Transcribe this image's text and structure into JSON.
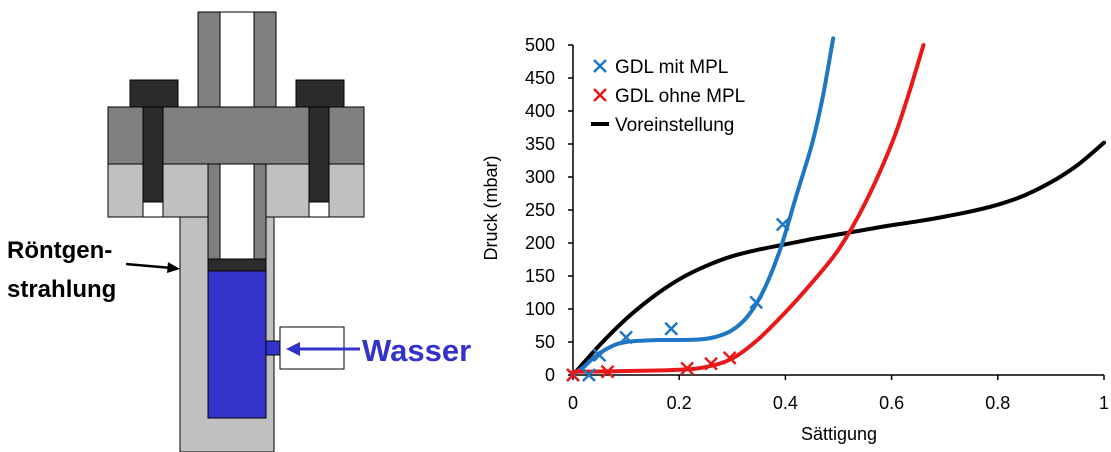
{
  "diagram": {
    "label_xray_line1": "Röntgen-",
    "label_xray_line2": "strahlung",
    "label_water": "Wasser",
    "colors": {
      "dark": "#2b2b2b",
      "mid": "#7f7f7f",
      "light": "#c0c0c0",
      "water": "#3333cc",
      "water_label": "#3333cc"
    }
  },
  "chart_data": {
    "type": "scatter",
    "title": "",
    "xlabel": "Sättigung",
    "ylabel": "Druck (mbar)",
    "xlim": [
      0,
      1
    ],
    "ylim": [
      0,
      500
    ],
    "xticks": [
      0,
      0.2,
      0.4,
      0.6,
      0.8,
      1
    ],
    "xtick_labels": [
      "0",
      "0.2",
      "0.4",
      "0.6",
      "0.8",
      "1"
    ],
    "yticks": [
      0,
      50,
      100,
      150,
      200,
      250,
      300,
      350,
      400,
      450,
      500
    ],
    "ytick_labels": [
      "0",
      "50",
      "100",
      "150",
      "200",
      "250",
      "300",
      "350",
      "400",
      "450",
      "500"
    ],
    "grid": false,
    "legend_position": "top-left",
    "series": [
      {
        "name": "GDL mit MPL",
        "color": "#1f77c4",
        "marker": "x",
        "points": [
          [
            0.0,
            0
          ],
          [
            0.03,
            0
          ],
          [
            0.05,
            30
          ],
          [
            0.1,
            57
          ],
          [
            0.185,
            70
          ],
          [
            0.345,
            110
          ],
          [
            0.395,
            228
          ]
        ],
        "curve": [
          [
            0.0,
            0
          ],
          [
            0.02,
            12
          ],
          [
            0.04,
            27
          ],
          [
            0.06,
            38
          ],
          [
            0.08,
            46
          ],
          [
            0.1,
            50
          ],
          [
            0.13,
            52
          ],
          [
            0.16,
            53
          ],
          [
            0.2,
            53
          ],
          [
            0.24,
            54
          ],
          [
            0.27,
            58
          ],
          [
            0.3,
            68
          ],
          [
            0.33,
            90
          ],
          [
            0.36,
            130
          ],
          [
            0.39,
            190
          ],
          [
            0.42,
            270
          ],
          [
            0.45,
            350
          ],
          [
            0.47,
            420
          ],
          [
            0.49,
            510
          ]
        ]
      },
      {
        "name": "GDL ohne MPL",
        "color": "#e8191b",
        "marker": "x",
        "points": [
          [
            0.0,
            0
          ],
          [
            0.065,
            5
          ],
          [
            0.215,
            10
          ],
          [
            0.26,
            17
          ],
          [
            0.295,
            26
          ]
        ],
        "curve": [
          [
            0.0,
            5
          ],
          [
            0.1,
            6
          ],
          [
            0.2,
            8
          ],
          [
            0.25,
            12
          ],
          [
            0.3,
            25
          ],
          [
            0.35,
            55
          ],
          [
            0.4,
            95
          ],
          [
            0.45,
            140
          ],
          [
            0.5,
            190
          ],
          [
            0.55,
            260
          ],
          [
            0.6,
            350
          ],
          [
            0.63,
            420
          ],
          [
            0.66,
            500
          ]
        ]
      },
      {
        "name": "Voreinstellung",
        "color": "#000000",
        "marker": "none",
        "points": [],
        "curve": [
          [
            0.0,
            0
          ],
          [
            0.05,
            45
          ],
          [
            0.1,
            85
          ],
          [
            0.15,
            118
          ],
          [
            0.2,
            145
          ],
          [
            0.25,
            165
          ],
          [
            0.3,
            180
          ],
          [
            0.35,
            190
          ],
          [
            0.4,
            198
          ],
          [
            0.45,
            206
          ],
          [
            0.5,
            213
          ],
          [
            0.55,
            220
          ],
          [
            0.6,
            227
          ],
          [
            0.65,
            233
          ],
          [
            0.7,
            240
          ],
          [
            0.75,
            248
          ],
          [
            0.8,
            258
          ],
          [
            0.85,
            272
          ],
          [
            0.9,
            292
          ],
          [
            0.95,
            318
          ],
          [
            1.0,
            352
          ]
        ]
      }
    ]
  }
}
